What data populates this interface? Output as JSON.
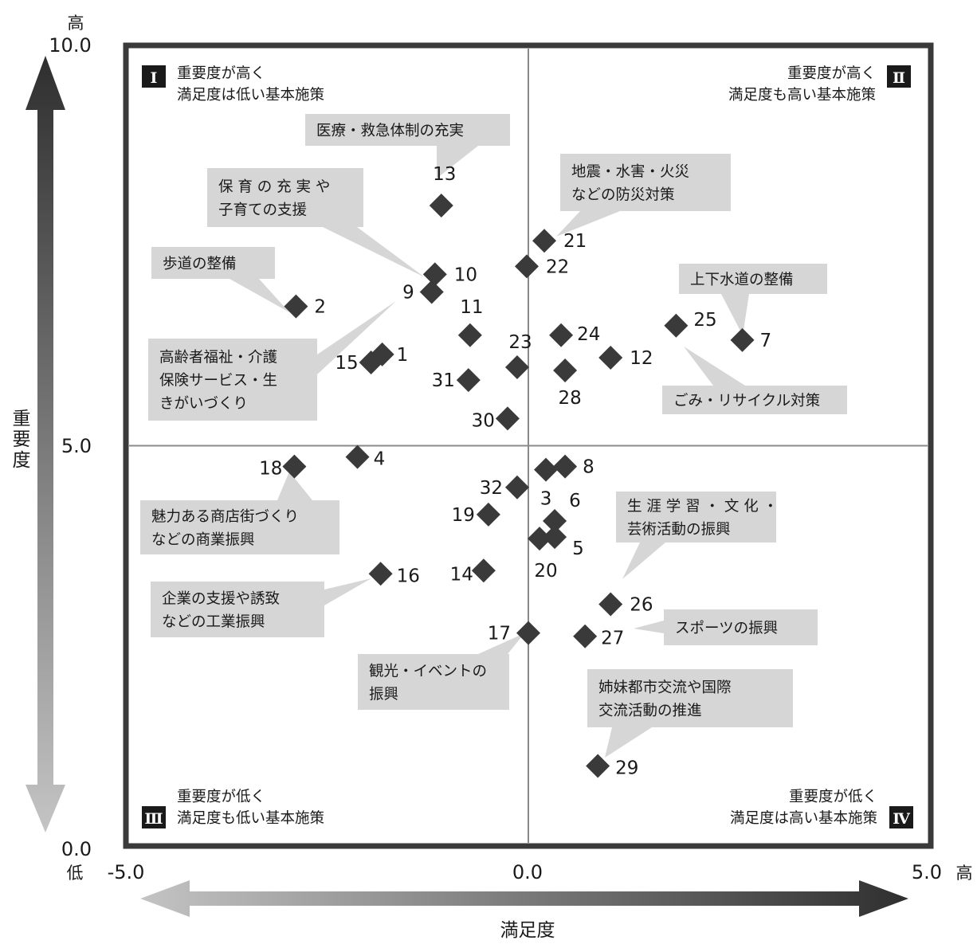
{
  "chart_data": {
    "type": "scatter",
    "xlabel": "満足度",
    "ylabel": "重要度",
    "xlim": [
      -5.0,
      5.0
    ],
    "ylim": [
      0.0,
      10.0
    ],
    "x_ticks": [
      "-5.0",
      "0.0",
      "5.0"
    ],
    "y_ticks": [
      "10.0",
      "5.0",
      "0.0"
    ],
    "x_low": "低",
    "x_high": "高",
    "y_high": "高",
    "divider_x": 0.0,
    "divider_y": 5.0,
    "quadrants": [
      {
        "numeral": "Ⅰ",
        "lines": [
          "重要度が高く",
          "満足度は低い基本施策"
        ]
      },
      {
        "numeral": "Ⅱ",
        "lines": [
          "重要度が高く",
          "満足度も高い基本施策"
        ]
      },
      {
        "numeral": "Ⅲ",
        "lines": [
          "重要度が低く",
          "満足度も低い基本施策"
        ]
      },
      {
        "numeral": "Ⅳ",
        "lines": [
          "重要度が低く",
          "満足度は高い基本施策"
        ]
      }
    ],
    "points": [
      {
        "id": "1",
        "x": -1.83,
        "y": 6.14
      },
      {
        "id": "2",
        "x": -2.91,
        "y": 6.74
      },
      {
        "id": "3",
        "x": 0.22,
        "y": 4.7
      },
      {
        "id": "4",
        "x": -2.14,
        "y": 4.86
      },
      {
        "id": "5",
        "x": 0.33,
        "y": 3.86
      },
      {
        "id": "6",
        "x": 0.33,
        "y": 4.06
      },
      {
        "id": "7",
        "x": 2.68,
        "y": 6.32
      },
      {
        "id": "8",
        "x": 0.46,
        "y": 4.74
      },
      {
        "id": "9",
        "x": -1.21,
        "y": 6.92
      },
      {
        "id": "10",
        "x": -1.17,
        "y": 7.14
      },
      {
        "id": "11",
        "x": -0.73,
        "y": 6.38
      },
      {
        "id": "12",
        "x": 1.03,
        "y": 6.1
      },
      {
        "id": "13",
        "x": -1.09,
        "y": 8.0
      },
      {
        "id": "14",
        "x": -0.56,
        "y": 3.44
      },
      {
        "id": "15",
        "x": -1.97,
        "y": 6.04
      },
      {
        "id": "16",
        "x": -1.85,
        "y": 3.4
      },
      {
        "id": "17",
        "x": 0.0,
        "y": 2.66
      },
      {
        "id": "18",
        "x": -2.93,
        "y": 4.74
      },
      {
        "id": "19",
        "x": -0.5,
        "y": 4.14
      },
      {
        "id": "20",
        "x": 0.14,
        "y": 3.84
      },
      {
        "id": "21",
        "x": 0.2,
        "y": 7.56
      },
      {
        "id": "22",
        "x": -0.02,
        "y": 7.24
      },
      {
        "id": "23",
        "x": -0.14,
        "y": 5.98
      },
      {
        "id": "24",
        "x": 0.41,
        "y": 6.38
      },
      {
        "id": "25",
        "x": 1.85,
        "y": 6.5
      },
      {
        "id": "26",
        "x": 1.03,
        "y": 3.02
      },
      {
        "id": "27",
        "x": 0.71,
        "y": 2.62
      },
      {
        "id": "28",
        "x": 0.46,
        "y": 5.94
      },
      {
        "id": "29",
        "x": 0.87,
        "y": 1.0
      },
      {
        "id": "30",
        "x": -0.26,
        "y": 5.34
      },
      {
        "id": "31",
        "x": -0.75,
        "y": 5.82
      },
      {
        "id": "32",
        "x": -0.14,
        "y": 4.48
      }
    ],
    "callouts": [
      {
        "target": "13",
        "lines": [
          "医療・救急体制の充実"
        ]
      },
      {
        "target": "21",
        "lines": [
          "地震・水害・火災",
          "などの防災対策"
        ]
      },
      {
        "target": "10",
        "lines": [
          "保 育 の 充 実 や",
          "子育ての支援"
        ]
      },
      {
        "target": "2",
        "lines": [
          "歩道の整備"
        ]
      },
      {
        "target": "7",
        "lines": [
          "上下水道の整備"
        ]
      },
      {
        "target": "9",
        "lines": [
          "高齢者福祉・介護",
          "保険サービス・生",
          "きがいづくり"
        ]
      },
      {
        "target": "25",
        "lines": [
          "ごみ・リサイクル対策"
        ]
      },
      {
        "target": "18",
        "lines": [
          "魅力ある商店街づくり",
          "などの商業振興"
        ]
      },
      {
        "target": "26",
        "lines": [
          "生 涯 学 習 ・ 文 化 ・",
          "芸術活動の振興"
        ]
      },
      {
        "target": "16",
        "lines": [
          "企業の支援や誘致",
          "などの工業振興"
        ]
      },
      {
        "target": "27",
        "lines": [
          "スポーツの振興"
        ]
      },
      {
        "target": "17",
        "lines": [
          "観光・イベントの",
          "振興"
        ]
      },
      {
        "target": "29",
        "lines": [
          "姉妹都市交流や国際",
          "交流活動の推進"
        ]
      }
    ]
  }
}
